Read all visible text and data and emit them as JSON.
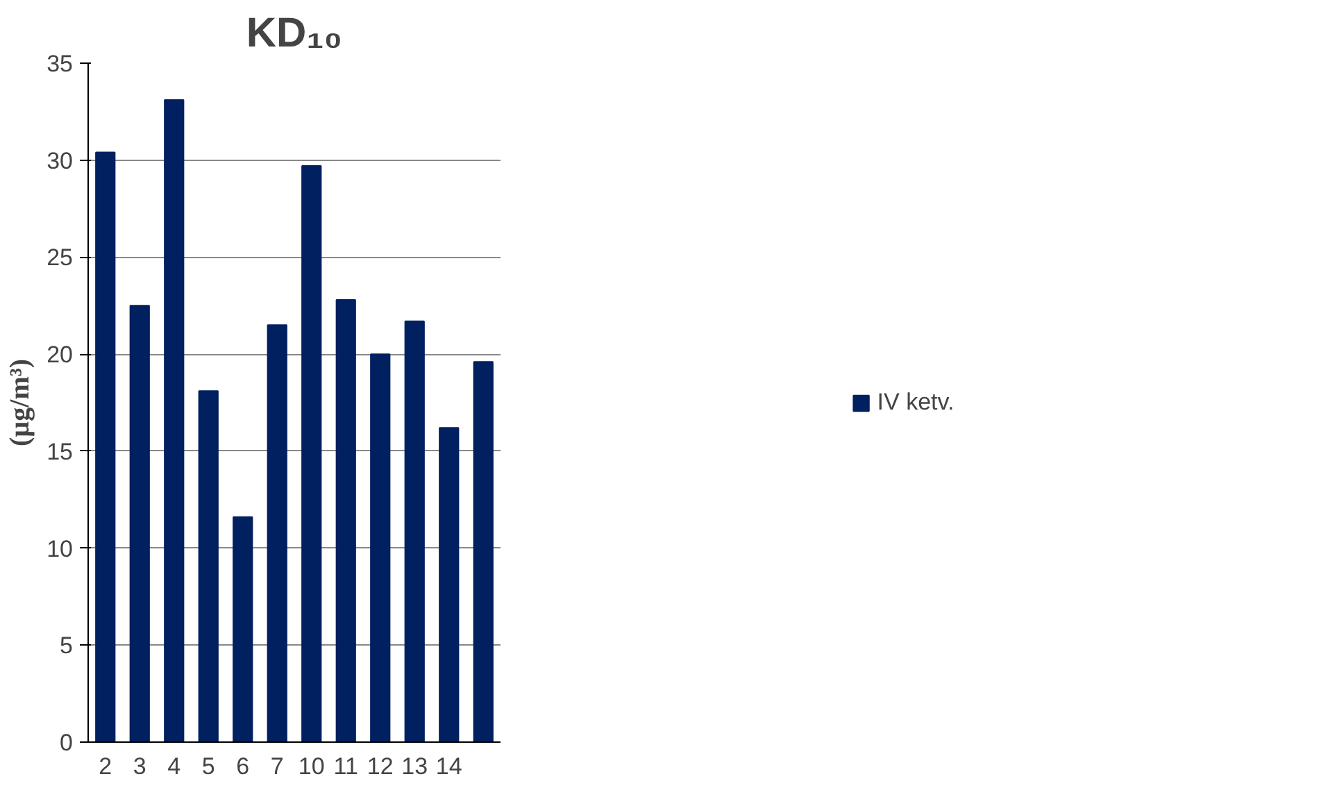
{
  "chart_data": {
    "type": "bar",
    "title": "KD₁₀",
    "ylabel": "(µg/m³)",
    "categories": [
      "2",
      "3",
      "4",
      "5",
      "6",
      "7",
      "10",
      "11",
      "12",
      "13",
      "14",
      null
    ],
    "series": [
      {
        "name": "IV ketv.",
        "color": "#002060",
        "values": [
          30.4,
          22.5,
          33.1,
          18.1,
          11.6,
          21.5,
          29.7,
          22.8,
          20.0,
          21.7,
          16.2,
          19.6
        ]
      }
    ],
    "ylim": [
      0,
      35
    ],
    "yticks": [
      0,
      5,
      10,
      15,
      20,
      25,
      30,
      35
    ],
    "grid": "y",
    "legend": "right"
  }
}
